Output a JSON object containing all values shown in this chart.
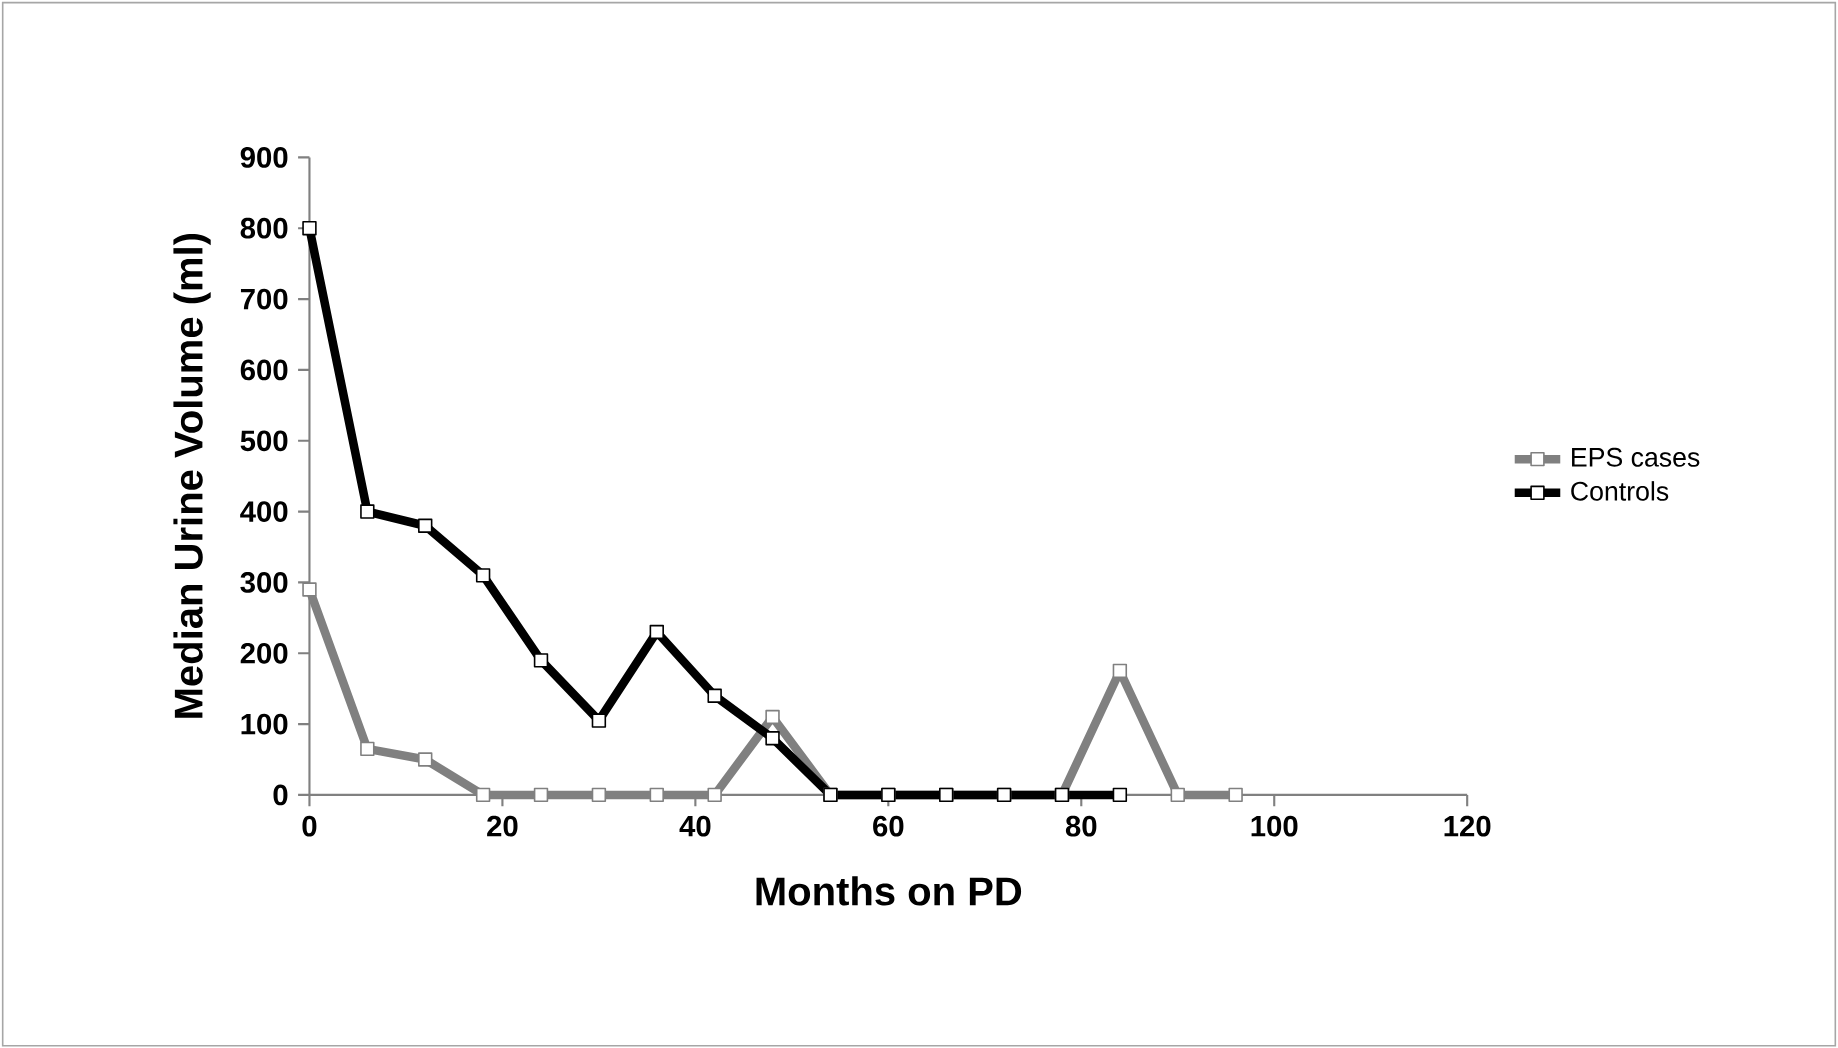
{
  "chart_data": {
    "type": "line",
    "xlabel": "Months on PD",
    "ylabel": "Median Urine Volume (ml)",
    "xlim": [
      0,
      120
    ],
    "xticks": [
      0,
      20,
      40,
      60,
      80,
      100,
      120
    ],
    "ylim": [
      0,
      900
    ],
    "yticks": [
      0,
      100,
      200,
      300,
      400,
      500,
      600,
      700,
      800,
      900
    ],
    "grid": false,
    "legend": "right",
    "marker": "square",
    "line_style": "solid",
    "series": [
      {
        "name": "EPS cases",
        "color": "#808080",
        "x": [
          0,
          6,
          12,
          18,
          24,
          30,
          36,
          42,
          48,
          54,
          60,
          66,
          72,
          78,
          84,
          90,
          96
        ],
        "values": [
          290,
          65,
          50,
          0,
          0,
          0,
          0,
          0,
          110,
          0,
          0,
          0,
          0,
          0,
          175,
          0,
          0
        ]
      },
      {
        "name": "Controls",
        "color": "#000000",
        "x": [
          0,
          6,
          12,
          18,
          24,
          30,
          36,
          42,
          48,
          54,
          60,
          66,
          72,
          78,
          84
        ],
        "values": [
          800,
          400,
          380,
          310,
          190,
          105,
          230,
          140,
          80,
          0,
          0,
          0,
          0,
          0,
          0
        ]
      }
    ]
  }
}
